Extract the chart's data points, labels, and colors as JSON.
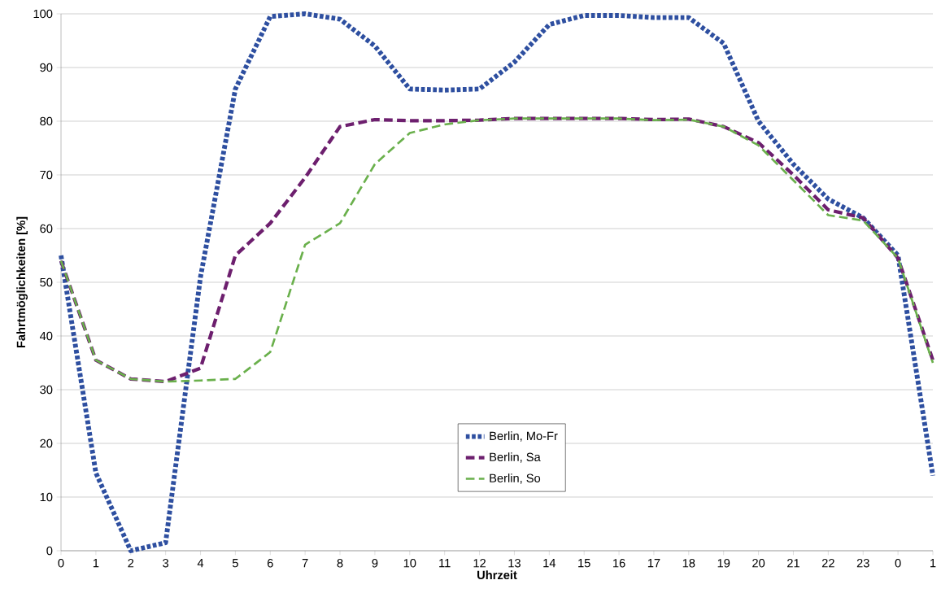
{
  "chart_data": {
    "type": "line",
    "xlabel": "Uhrzeit",
    "ylabel": "Fahrtmöglichkeiten [%]",
    "categories": [
      "0",
      "1",
      "2",
      "3",
      "4",
      "5",
      "6",
      "7",
      "8",
      "9",
      "10",
      "11",
      "12",
      "13",
      "14",
      "15",
      "16",
      "17",
      "18",
      "19",
      "20",
      "21",
      "22",
      "23",
      "0",
      "1"
    ],
    "series": [
      {
        "name": "Berlin, Mo-Fr",
        "color": "#2e4fa0",
        "line_style": "dotted",
        "values": [
          55,
          14.5,
          0,
          1.5,
          51,
          86,
          99.5,
          100,
          99,
          94,
          86,
          85.8,
          86,
          91,
          98,
          99.7,
          99.7,
          99.3,
          99.3,
          94.5,
          80,
          72,
          65.5,
          62,
          55,
          14
        ]
      },
      {
        "name": "Berlin, Sa",
        "color": "#6d1f6e",
        "line_style": "dashed",
        "values": [
          54,
          35.5,
          32,
          31.5,
          34,
          55,
          61,
          69.5,
          79,
          80.3,
          80.1,
          80.1,
          80.2,
          80.5,
          80.5,
          80.5,
          80.5,
          80.3,
          80.4,
          79,
          76,
          70,
          63.5,
          62,
          54.5,
          35.5
        ]
      },
      {
        "name": "Berlin, So",
        "color": "#6ab04c",
        "line_style": "dashed",
        "values": [
          54,
          35.5,
          32,
          31.5,
          31.7,
          32,
          37,
          57,
          61,
          72,
          77.8,
          79.4,
          80.2,
          80.5,
          80.5,
          80.5,
          80.5,
          80.2,
          80.3,
          79,
          75.5,
          69,
          62.5,
          61.5,
          54.5,
          35
        ]
      }
    ],
    "ylim": [
      0,
      100
    ],
    "yticks": [
      0,
      10,
      20,
      30,
      40,
      50,
      60,
      70,
      80,
      90,
      100
    ],
    "grid": "y",
    "legend": "bottom",
    "marker": "none"
  }
}
